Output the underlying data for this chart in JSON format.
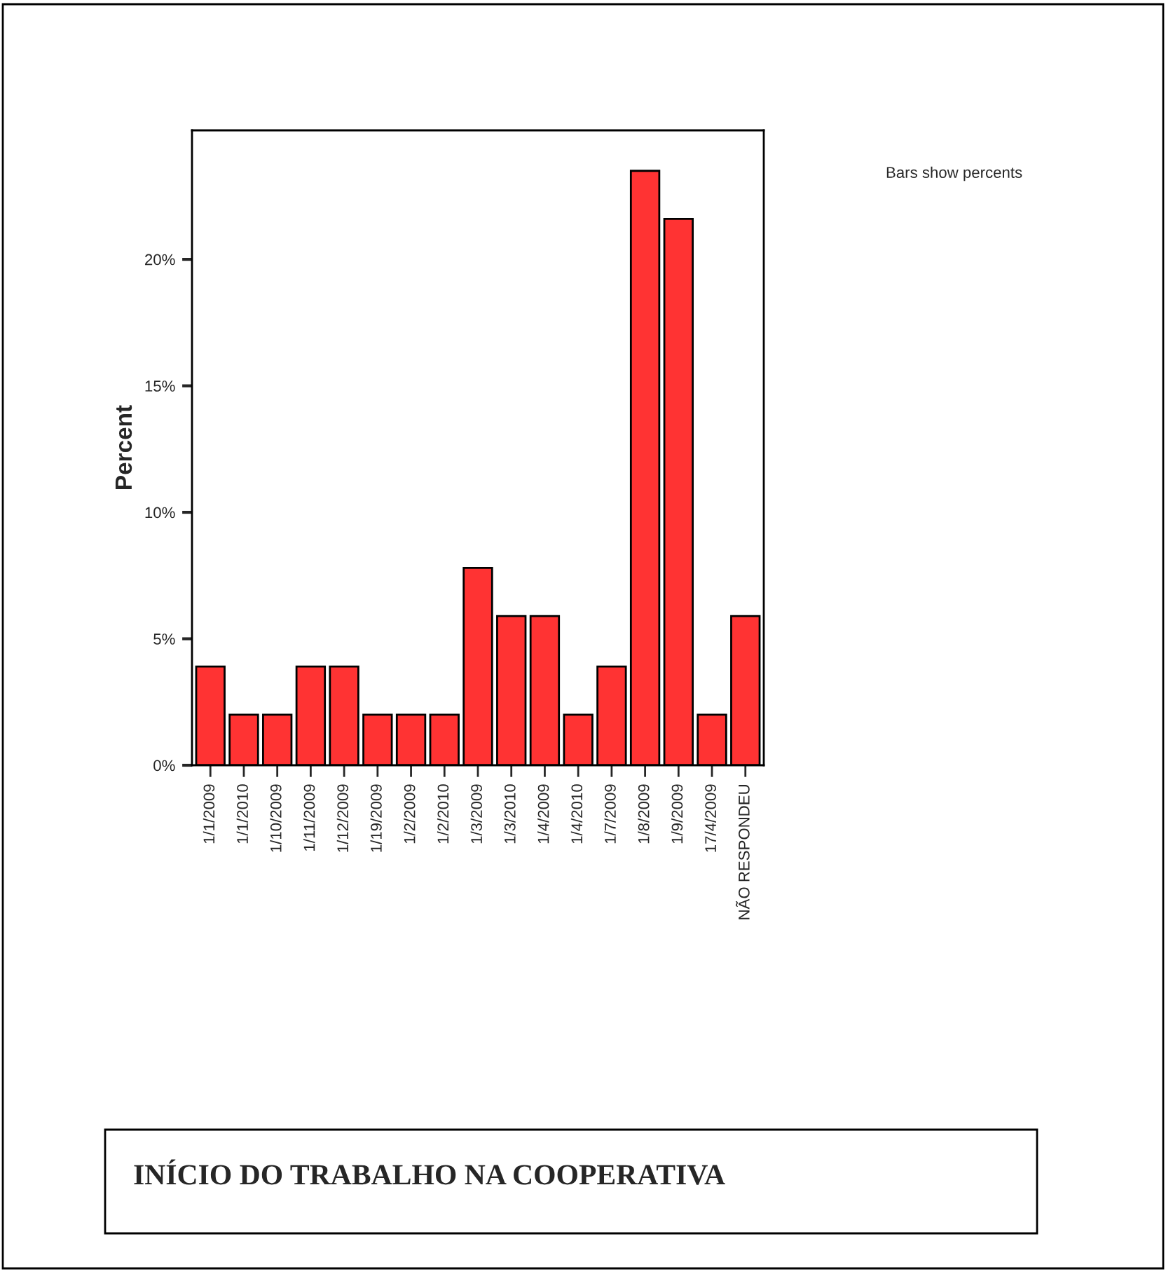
{
  "chart_data": {
    "type": "bar",
    "title": "INÍCIO DO TRABALHO NA COOPERATIVA",
    "ylabel": "Percent",
    "categories": [
      "1/1/2009",
      "1/1/2010",
      "1/10/2009",
      "1/11/2009",
      "1/12/2009",
      "1/19/2009",
      "1/2/2009",
      "1/2/2010",
      "1/3/2009",
      "1/3/2010",
      "1/4/2009",
      "1/4/2010",
      "1/7/2009",
      "1/8/2009",
      "1/9/2009",
      "17/4/2009",
      "NÃO RESPONDEU"
    ],
    "values": [
      3.9,
      2.0,
      2.0,
      3.9,
      3.9,
      2.0,
      2.0,
      2.0,
      7.8,
      5.9,
      5.9,
      2.0,
      3.9,
      23.5,
      21.6,
      2.0,
      5.9
    ],
    "color": "#ff3333",
    "ylim": [
      0,
      25.1
    ],
    "yticks": [
      {
        "value": 0,
        "label": "0%"
      },
      {
        "value": 5,
        "label": "5%"
      },
      {
        "value": 10,
        "label": "10%"
      },
      {
        "value": 15,
        "label": "15%"
      },
      {
        "value": 20,
        "label": "20%"
      }
    ],
    "annotations": [
      "Bars show percents"
    ],
    "grid": false,
    "legend": false
  }
}
